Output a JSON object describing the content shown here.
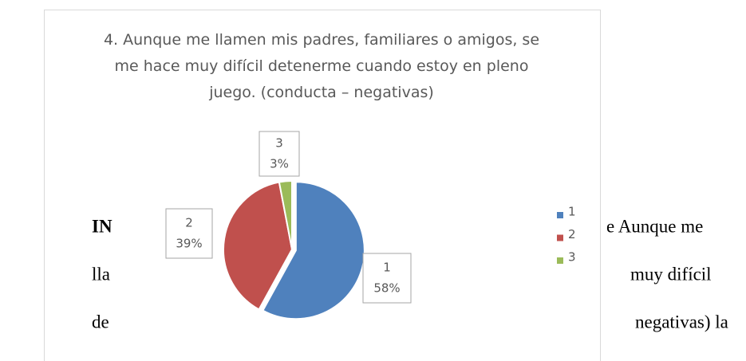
{
  "chart_data": {
    "type": "pie",
    "title": "4. Aunque me llamen mis padres, familiares o amigos, se me hace muy difícil detenerme cuando estoy en pleno juego. (conducta – negativas)",
    "categories": [
      "1",
      "2",
      "3"
    ],
    "values": [
      58,
      39,
      3
    ],
    "value_labels": [
      "58%",
      "39%",
      "3%"
    ],
    "colors": [
      "#4f81bd",
      "#c0504d",
      "#9bbb59"
    ],
    "legend": "right"
  },
  "document": {
    "fragments": [
      "IN",
      "e Aunque me",
      "lla",
      "muy difícil",
      "de",
      "negativas) la"
    ]
  }
}
